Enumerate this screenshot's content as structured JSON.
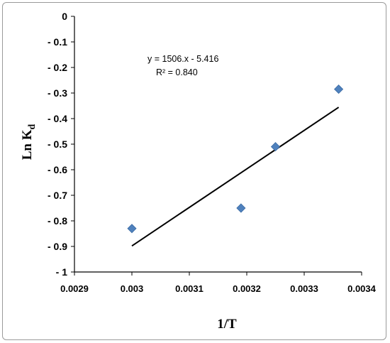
{
  "chart_data": {
    "type": "scatter",
    "xlabel": "1/T",
    "ylabel_main": "Ln K",
    "ylabel_sub": "d",
    "xlim": [
      0.0029,
      0.0034
    ],
    "ylim": [
      -1,
      0
    ],
    "xticks": [
      "0.0029",
      "0.003",
      "0.0031",
      "0.0032",
      "0.0033",
      "0.0034"
    ],
    "yticks": [
      "0",
      "- 0.1",
      "- 0.2",
      "- 0.3",
      "- 0.4",
      "- 0.5",
      "- 0.6",
      "- 0.7",
      "- 0.8",
      "- 0.9",
      "- 1"
    ],
    "points": [
      {
        "x": 0.003,
        "y": -0.83
      },
      {
        "x": 0.00319,
        "y": -0.75
      },
      {
        "x": 0.00325,
        "y": -0.51
      },
      {
        "x": 0.00336,
        "y": -0.285
      }
    ],
    "trendline": {
      "slope": 1506,
      "intercept": -5.416,
      "x_start": 0.003,
      "x_end": 0.00336
    },
    "equation_text": "y = 1506.x - 5.416",
    "r2_label": "R² = 0.840",
    "marker_color": "#4F81BD",
    "line_color": "#000000"
  }
}
